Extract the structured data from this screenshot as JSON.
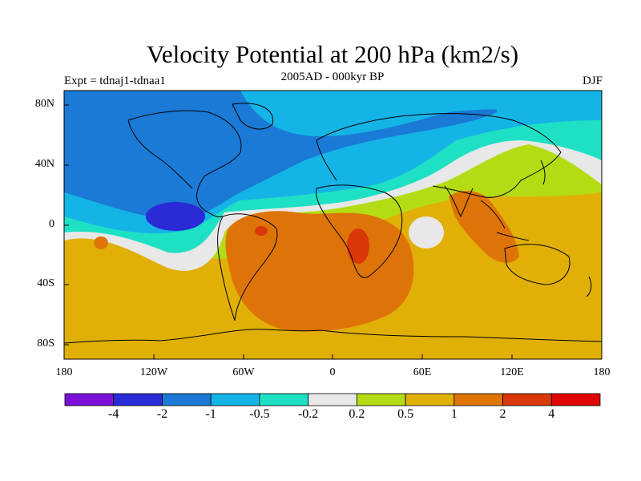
{
  "title": "Velocity Potential at 200 hPa (km2/s)",
  "left_string": "Expt = tdnaj1-tdnaa1",
  "center_string": "2005AD - 000kyr BP",
  "right_string": "DJF",
  "lat_labels": [
    "80N",
    "40N",
    "0",
    "40S",
    "80S"
  ],
  "lon_labels": [
    "180",
    "120W",
    "60W",
    "0",
    "60E",
    "120E",
    "180"
  ],
  "colorbar": {
    "colors": [
      "#7a10d8",
      "#2a2ad6",
      "#1a7ad6",
      "#14b4e6",
      "#1ee0c4",
      "#e8e8e8",
      "#b4dc14",
      "#e0b006",
      "#de7408",
      "#da3808",
      "#e00606"
    ],
    "labels": [
      "-4",
      "-2",
      "-1",
      "-0.5",
      "-0.2",
      "0.2",
      "0.5",
      "1",
      "2",
      "4"
    ]
  }
}
